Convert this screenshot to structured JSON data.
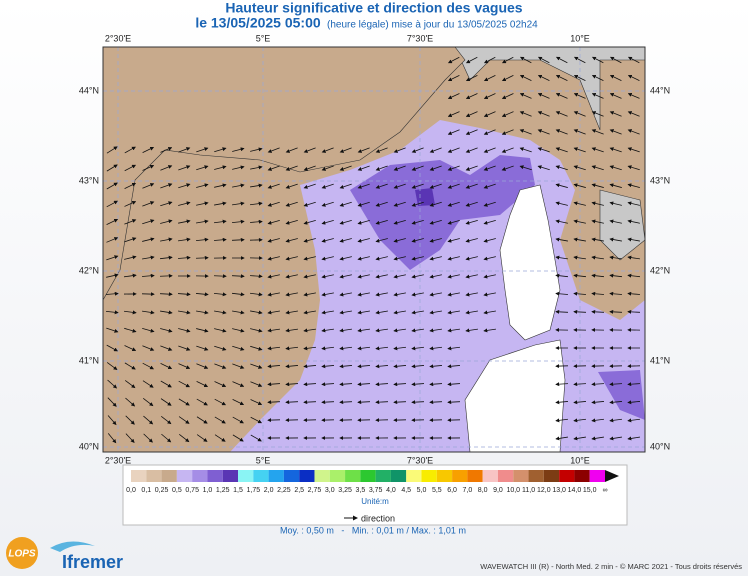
{
  "header": {
    "title": "Hauteur significative et direction des vagues",
    "date": "le 13/05/2025 05:00",
    "update": "(heure légale) mise à jour du 13/05/2025 02h24"
  },
  "map": {
    "lon_labels": [
      "2°30'E",
      "5°E",
      "7°30'E",
      "10°E"
    ],
    "lat_labels": [
      "44°N",
      "43°N",
      "42°N",
      "41°N",
      "40°N"
    ]
  },
  "legend": {
    "labels": [
      "0,0",
      "0,1",
      "0,25",
      "0,5",
      "0,75",
      "1,0",
      "1,25",
      "1,5",
      "1,75",
      "2,0",
      "2,25",
      "2,5",
      "2,75",
      "3,0",
      "3,25",
      "3,5",
      "3,75",
      "4,0",
      "4,5",
      "5,0",
      "5,5",
      "6,0",
      "7,0",
      "8,0",
      "9,0",
      "10,0",
      "11,0",
      "12,0",
      "13,0",
      "14,0",
      "15,0",
      "∞"
    ],
    "colors": [
      "#e9d3bf",
      "#d9bea3",
      "#c8aa8c",
      "#c6b6f2",
      "#a58de6",
      "#7f5fd2",
      "#5a35b4",
      "#8af4f4",
      "#45d2f2",
      "#24a4ee",
      "#1466de",
      "#0a2ec4",
      "#d0f48c",
      "#aaf06a",
      "#6ee048",
      "#2cc830",
      "#22b066",
      "#109468",
      "#fafa78",
      "#f8ec00",
      "#f8c800",
      "#f8a000",
      "#f07800",
      "#f8c4c4",
      "#f08c8c",
      "#d4906c",
      "#a06030",
      "#7c3c14",
      "#c40000",
      "#8c0000",
      "#f000f0",
      "#900090"
    ],
    "unit": "Unité:m",
    "direction": "direction",
    "stats": "Moy. : 0,50 m   -   Min. : 0,01 m / Max. : 1,01 m"
  },
  "footer": {
    "lops": "LOPS",
    "brand": "Ifremer",
    "credit": "WAVEWATCH III (R) - North Med. 2 min - © MARC 2021 - Tous droits réservés"
  }
}
